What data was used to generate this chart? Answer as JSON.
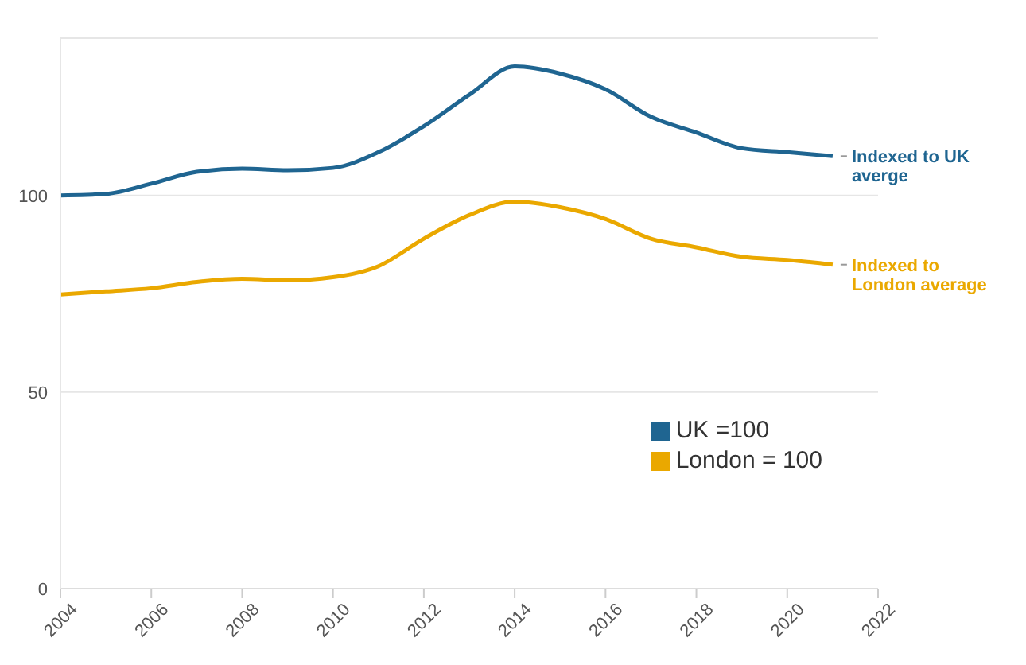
{
  "chart_data": {
    "type": "line",
    "x": [
      2004,
      2005,
      2006,
      2007,
      2008,
      2009,
      2010,
      2011,
      2012,
      2013,
      2014,
      2015,
      2016,
      2017,
      2018,
      2019,
      2020,
      2021
    ],
    "series": [
      {
        "name": "UK =100",
        "color": "#1f6591",
        "values": [
          100,
          100.4,
          103,
          106,
          106.8,
          106.4,
          107,
          111,
          117.6,
          125.6,
          132.8,
          131,
          127,
          120,
          116,
          112,
          111,
          110
        ]
      },
      {
        "name": "London = 100",
        "color": "#eaa800",
        "values": [
          74.8,
          75.6,
          76.4,
          78,
          78.8,
          78.4,
          79.2,
          82,
          89,
          95,
          98.4,
          97,
          94,
          89,
          86.8,
          84.4,
          83.6,
          82.4
        ]
      }
    ],
    "xlim": [
      2004,
      2022
    ],
    "xticks": [
      2004,
      2006,
      2008,
      2010,
      2012,
      2014,
      2016,
      2018,
      2020,
      2022
    ],
    "ylim": [
      0,
      140
    ],
    "yticks": [
      0,
      50,
      100
    ],
    "grid": "y",
    "legend": "bottom right",
    "marker": "none",
    "line_style": "solid",
    "annotations": [
      {
        "text": "Indexed to UK averge",
        "x": 2021,
        "y": 110
      },
      {
        "text": "Indexed to London average",
        "x": 2021,
        "y": 82.4
      }
    ]
  }
}
